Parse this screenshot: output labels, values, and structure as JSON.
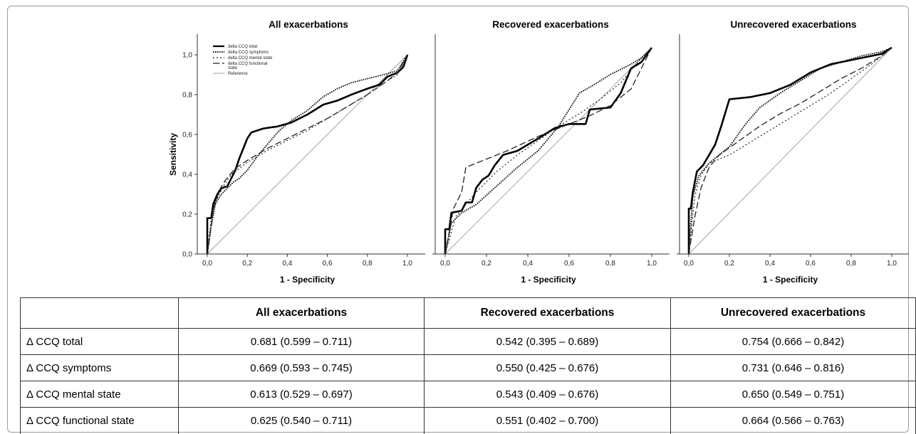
{
  "chart_data": [
    {
      "type": "line",
      "title": "All exacerbations",
      "xlabel": "1 - Specificity",
      "ylabel": "Sensitivity",
      "xlim": [
        0,
        1
      ],
      "ylim": [
        0,
        1
      ],
      "legend_position": "top-left",
      "xticks": [
        "0,0",
        "0,2",
        "0,4",
        "0,6",
        "0,8",
        "1,0"
      ],
      "yticks": [
        "0,0",
        "0,2",
        "0,4",
        "0,6",
        "0,8",
        "1,0"
      ],
      "series": [
        {
          "name": "delta CCQ total",
          "style": "solid-thick",
          "points": [
            [
              0,
              0
            ],
            [
              0,
              0.18
            ],
            [
              0.02,
              0.18
            ],
            [
              0.03,
              0.25
            ],
            [
              0.05,
              0.3
            ],
            [
              0.07,
              0.33
            ],
            [
              0.1,
              0.34
            ],
            [
              0.12,
              0.38
            ],
            [
              0.14,
              0.42
            ],
            [
              0.16,
              0.48
            ],
            [
              0.18,
              0.53
            ],
            [
              0.2,
              0.58
            ],
            [
              0.22,
              0.61
            ],
            [
              0.28,
              0.63
            ],
            [
              0.35,
              0.64
            ],
            [
              0.42,
              0.66
            ],
            [
              0.5,
              0.7
            ],
            [
              0.58,
              0.75
            ],
            [
              0.65,
              0.77
            ],
            [
              0.72,
              0.8
            ],
            [
              0.8,
              0.83
            ],
            [
              0.86,
              0.85
            ],
            [
              0.9,
              0.89
            ],
            [
              0.95,
              0.91
            ],
            [
              0.98,
              0.94
            ],
            [
              1,
              1
            ]
          ]
        },
        {
          "name": "delta CCQ symptoms",
          "style": "dotted-thick",
          "points": [
            [
              0,
              0
            ],
            [
              0.02,
              0.14
            ],
            [
              0.04,
              0.25
            ],
            [
              0.07,
              0.3
            ],
            [
              0.1,
              0.33
            ],
            [
              0.13,
              0.36
            ],
            [
              0.16,
              0.38
            ],
            [
              0.2,
              0.42
            ],
            [
              0.25,
              0.49
            ],
            [
              0.3,
              0.55
            ],
            [
              0.36,
              0.62
            ],
            [
              0.42,
              0.67
            ],
            [
              0.5,
              0.72
            ],
            [
              0.58,
              0.79
            ],
            [
              0.65,
              0.83
            ],
            [
              0.72,
              0.86
            ],
            [
              0.8,
              0.88
            ],
            [
              0.88,
              0.9
            ],
            [
              0.95,
              0.92
            ],
            [
              1,
              1
            ]
          ]
        },
        {
          "name": "delta CCQ mental state",
          "style": "dotted",
          "points": [
            [
              0,
              0
            ],
            [
              0.02,
              0.18
            ],
            [
              0.04,
              0.26
            ],
            [
              0.08,
              0.34
            ],
            [
              0.12,
              0.4
            ],
            [
              0.2,
              0.46
            ],
            [
              0.3,
              0.52
            ],
            [
              0.4,
              0.57
            ],
            [
              0.5,
              0.62
            ],
            [
              0.6,
              0.68
            ],
            [
              0.7,
              0.74
            ],
            [
              0.8,
              0.8
            ],
            [
              0.9,
              0.87
            ],
            [
              0.95,
              0.9
            ],
            [
              1,
              1
            ]
          ]
        },
        {
          "name": "delta CCQ functional state",
          "style": "dashed",
          "points": [
            [
              0,
              0
            ],
            [
              0.03,
              0.22
            ],
            [
              0.06,
              0.32
            ],
            [
              0.09,
              0.37
            ],
            [
              0.14,
              0.43
            ],
            [
              0.2,
              0.47
            ],
            [
              0.3,
              0.53
            ],
            [
              0.4,
              0.58
            ],
            [
              0.5,
              0.63
            ],
            [
              0.6,
              0.68
            ],
            [
              0.7,
              0.74
            ],
            [
              0.8,
              0.8
            ],
            [
              0.9,
              0.87
            ],
            [
              0.95,
              0.91
            ],
            [
              1,
              1
            ]
          ]
        },
        {
          "name": "Reference",
          "style": "reference",
          "points": [
            [
              0,
              0
            ],
            [
              1,
              1
            ]
          ]
        }
      ]
    },
    {
      "type": "line",
      "title": "Recovered exacerbations",
      "xlabel": "1 - Specificity",
      "ylabel": "",
      "xlim": [
        0,
        1
      ],
      "ylim": [
        0,
        1
      ],
      "xticks": [
        "0,0",
        "0,2",
        "0,4",
        "0,6",
        "0,8",
        "1,0"
      ],
      "series": [
        {
          "style": "solid-thick",
          "points": [
            [
              0,
              0
            ],
            [
              0,
              0.12
            ],
            [
              0.02,
              0.12
            ],
            [
              0.03,
              0.2
            ],
            [
              0.08,
              0.21
            ],
            [
              0.1,
              0.25
            ],
            [
              0.13,
              0.25
            ],
            [
              0.15,
              0.32
            ],
            [
              0.18,
              0.36
            ],
            [
              0.21,
              0.38
            ],
            [
              0.24,
              0.43
            ],
            [
              0.28,
              0.48
            ],
            [
              0.35,
              0.5
            ],
            [
              0.45,
              0.56
            ],
            [
              0.53,
              0.61
            ],
            [
              0.6,
              0.63
            ],
            [
              0.68,
              0.63
            ],
            [
              0.7,
              0.7
            ],
            [
              0.8,
              0.71
            ],
            [
              0.85,
              0.78
            ],
            [
              0.9,
              0.9
            ],
            [
              0.95,
              0.93
            ],
            [
              1,
              1
            ]
          ]
        },
        {
          "style": "dotted-thick",
          "points": [
            [
              0,
              0
            ],
            [
              0.03,
              0.15
            ],
            [
              0.08,
              0.2
            ],
            [
              0.15,
              0.24
            ],
            [
              0.25,
              0.33
            ],
            [
              0.35,
              0.42
            ],
            [
              0.45,
              0.5
            ],
            [
              0.55,
              0.62
            ],
            [
              0.65,
              0.78
            ],
            [
              0.72,
              0.82
            ],
            [
              0.8,
              0.87
            ],
            [
              0.9,
              0.92
            ],
            [
              0.95,
              0.95
            ],
            [
              1,
              1
            ]
          ]
        },
        {
          "style": "dotted",
          "points": [
            [
              0,
              0
            ],
            [
              0.05,
              0.18
            ],
            [
              0.15,
              0.3
            ],
            [
              0.25,
              0.4
            ],
            [
              0.35,
              0.48
            ],
            [
              0.45,
              0.55
            ],
            [
              0.55,
              0.62
            ],
            [
              0.65,
              0.68
            ],
            [
              0.75,
              0.75
            ],
            [
              0.85,
              0.83
            ],
            [
              0.95,
              0.95
            ],
            [
              1,
              1
            ]
          ]
        },
        {
          "style": "dashed",
          "points": [
            [
              0,
              0
            ],
            [
              0.04,
              0.22
            ],
            [
              0.08,
              0.3
            ],
            [
              0.1,
              0.42
            ],
            [
              0.2,
              0.46
            ],
            [
              0.3,
              0.5
            ],
            [
              0.45,
              0.57
            ],
            [
              0.6,
              0.63
            ],
            [
              0.7,
              0.67
            ],
            [
              0.8,
              0.72
            ],
            [
              0.9,
              0.8
            ],
            [
              0.95,
              0.9
            ],
            [
              1,
              1
            ]
          ]
        },
        {
          "style": "reference",
          "points": [
            [
              0,
              0
            ],
            [
              1,
              1
            ]
          ]
        }
      ]
    },
    {
      "type": "line",
      "title": "Unrecovered exacerbations",
      "xlabel": "1 - Specificity",
      "ylabel": "",
      "xlim": [
        0,
        1
      ],
      "ylim": [
        0,
        1
      ],
      "xticks": [
        "0,0",
        "0,2",
        "0,4",
        "0,6",
        "0,8",
        "1,0"
      ],
      "series": [
        {
          "style": "solid-thick",
          "points": [
            [
              0,
              0
            ],
            [
              0,
              0.22
            ],
            [
              0.01,
              0.22
            ],
            [
              0.02,
              0.3
            ],
            [
              0.04,
              0.4
            ],
            [
              0.07,
              0.43
            ],
            [
              0.1,
              0.48
            ],
            [
              0.13,
              0.53
            ],
            [
              0.16,
              0.62
            ],
            [
              0.2,
              0.75
            ],
            [
              0.3,
              0.76
            ],
            [
              0.4,
              0.78
            ],
            [
              0.5,
              0.82
            ],
            [
              0.6,
              0.88
            ],
            [
              0.7,
              0.92
            ],
            [
              0.8,
              0.94
            ],
            [
              0.9,
              0.96
            ],
            [
              0.95,
              0.97
            ],
            [
              1,
              1
            ]
          ]
        },
        {
          "style": "dotted-thick",
          "points": [
            [
              0,
              0
            ],
            [
              0.02,
              0.28
            ],
            [
              0.05,
              0.38
            ],
            [
              0.1,
              0.44
            ],
            [
              0.15,
              0.48
            ],
            [
              0.2,
              0.52
            ],
            [
              0.28,
              0.63
            ],
            [
              0.35,
              0.71
            ],
            [
              0.45,
              0.78
            ],
            [
              0.55,
              0.84
            ],
            [
              0.65,
              0.9
            ],
            [
              0.75,
              0.93
            ],
            [
              0.85,
              0.96
            ],
            [
              0.95,
              0.98
            ],
            [
              1,
              1
            ]
          ]
        },
        {
          "style": "dotted",
          "points": [
            [
              0,
              0
            ],
            [
              0.03,
              0.28
            ],
            [
              0.06,
              0.38
            ],
            [
              0.1,
              0.44
            ],
            [
              0.2,
              0.48
            ],
            [
              0.3,
              0.54
            ],
            [
              0.4,
              0.6
            ],
            [
              0.5,
              0.66
            ],
            [
              0.6,
              0.72
            ],
            [
              0.7,
              0.78
            ],
            [
              0.8,
              0.85
            ],
            [
              0.9,
              0.92
            ],
            [
              1,
              1
            ]
          ]
        },
        {
          "style": "dashed",
          "points": [
            [
              0,
              0
            ],
            [
              0.03,
              0.18
            ],
            [
              0.06,
              0.32
            ],
            [
              0.1,
              0.42
            ],
            [
              0.15,
              0.48
            ],
            [
              0.25,
              0.55
            ],
            [
              0.35,
              0.62
            ],
            [
              0.45,
              0.68
            ],
            [
              0.55,
              0.73
            ],
            [
              0.65,
              0.79
            ],
            [
              0.75,
              0.85
            ],
            [
              0.85,
              0.9
            ],
            [
              0.95,
              0.96
            ],
            [
              1,
              1
            ]
          ]
        },
        {
          "style": "reference",
          "points": [
            [
              0,
              0
            ],
            [
              1,
              1
            ]
          ]
        }
      ]
    }
  ],
  "table": {
    "headers": [
      "",
      "All exacerbations",
      "Recovered exacerbations",
      "Unrecovered exacerbations"
    ],
    "rows": [
      {
        "label": "Δ CCQ total",
        "all": "0.681 (0.599 – 0.711)",
        "recovered": "0.542 (0.395 – 0.689)",
        "unrecovered": "0.754 (0.666 – 0.842)"
      },
      {
        "label": "Δ CCQ symptoms",
        "all": "0.669 (0.593 – 0.745)",
        "recovered": "0.550 (0.425 – 0.676)",
        "unrecovered": "0.731 (0.646 – 0.816)"
      },
      {
        "label": "Δ CCQ mental state",
        "all": "0.613 (0.529 – 0.697)",
        "recovered": "0.543 (0.409 – 0.676)",
        "unrecovered": "0.650 (0.549 – 0.751)"
      },
      {
        "label": "Δ CCQ functional state",
        "all": "0.625 (0.540 – 0.711)",
        "recovered": "0.551 (0.402 – 0.700)",
        "unrecovered": "0.664 (0.566 – 0.763)"
      }
    ]
  }
}
